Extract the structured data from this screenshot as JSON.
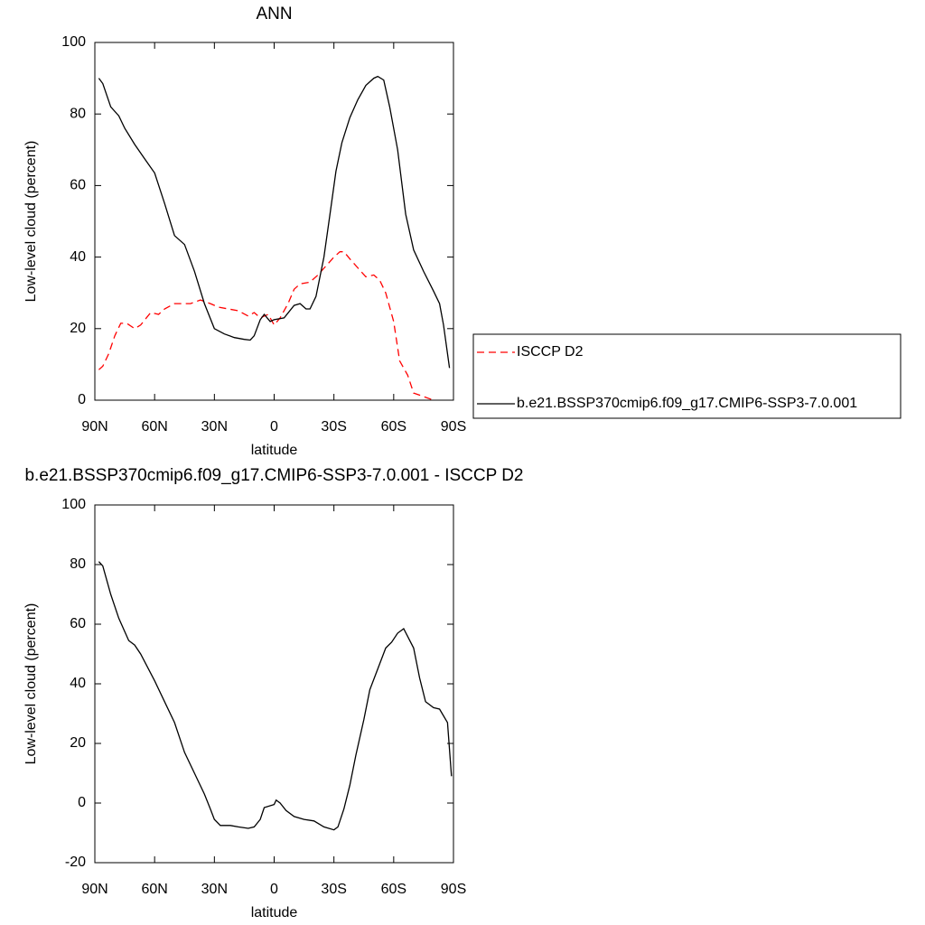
{
  "chart_data": [
    {
      "type": "line",
      "title": "ANN",
      "xlabel": "latitude",
      "ylabel": "Low-level cloud (percent)",
      "xlim": [
        90,
        -90
      ],
      "xticks": [
        {
          "value": 90,
          "label": "90N"
        },
        {
          "value": 60,
          "label": "60N"
        },
        {
          "value": 30,
          "label": "30N"
        },
        0,
        {
          "value": -30,
          "label": "30S"
        },
        {
          "value": -60,
          "label": "60S"
        },
        {
          "value": -90,
          "label": "90S"
        }
      ],
      "ylim": [
        0,
        100
      ],
      "yticks": [
        0,
        20,
        40,
        60,
        80,
        100
      ],
      "legend": "right",
      "series": [
        {
          "name": "ISCCP D2",
          "color": "#ff0000",
          "dash": true,
          "x": [
            88,
            86,
            83,
            80,
            77,
            74,
            70,
            67,
            62,
            58,
            55,
            50,
            45,
            42,
            37,
            32,
            28,
            23,
            18,
            13,
            10,
            7,
            3,
            0,
            -3,
            -7,
            -10,
            -13,
            -18,
            -22,
            -26,
            -30,
            -33,
            -35,
            -38,
            -42,
            -46,
            -50,
            -53,
            -56,
            -60,
            -63,
            -67,
            -70,
            -75,
            -80
          ],
          "values": [
            8.5,
            9.5,
            13,
            18,
            21.5,
            21.5,
            20,
            21,
            24.5,
            24,
            25.5,
            27,
            27,
            27,
            28,
            27,
            26,
            25.5,
            25,
            23.5,
            24.5,
            23,
            24,
            21,
            23,
            27,
            31,
            32.5,
            33,
            35,
            37.5,
            40,
            41.5,
            41.5,
            39.5,
            37,
            34.5,
            35,
            33.5,
            30,
            22,
            11,
            7,
            2,
            1,
            0
          ]
        },
        {
          "name": "b.e21.BSSP370cmip6.f09_g17.CMIP6-SSP3-7.0.001",
          "color": "#000000",
          "dash": false,
          "x": [
            88,
            86,
            82,
            78,
            75,
            70,
            65,
            60,
            55,
            50,
            45,
            40,
            35,
            30,
            25,
            20,
            15,
            12,
            10,
            7,
            5,
            2,
            0,
            -5,
            -10,
            -13,
            -16,
            -18,
            -21,
            -25,
            -28,
            -31,
            -34,
            -38,
            -42,
            -46,
            -50,
            -52,
            -55,
            -58,
            -62,
            -66,
            -70,
            -75,
            -80,
            -83,
            -85,
            -88
          ],
          "values": [
            90,
            88.5,
            82,
            79.5,
            76,
            71.5,
            67.5,
            63.5,
            55,
            46,
            43.5,
            36,
            27,
            20,
            18.5,
            17.5,
            17,
            16.8,
            18,
            22.5,
            24,
            22,
            22.5,
            23,
            26.5,
            27,
            25.5,
            25.5,
            29,
            40,
            52,
            64,
            72,
            79,
            84,
            88,
            90,
            90.5,
            89.5,
            82,
            70,
            52,
            42,
            36,
            30.5,
            27,
            21,
            9
          ]
        }
      ]
    },
    {
      "type": "line",
      "title": "b.e21.BSSP370cmip6.f09_g17.CMIP6-SSP3-7.0.001 - ISCCP D2",
      "xlabel": "latitude",
      "ylabel": "Low-level cloud (percent)",
      "xlim": [
        90,
        -90
      ],
      "xticks": [
        {
          "value": 90,
          "label": "90N"
        },
        {
          "value": 60,
          "label": "60N"
        },
        {
          "value": 30,
          "label": "30N"
        },
        0,
        {
          "value": -30,
          "label": "30S"
        },
        {
          "value": -60,
          "label": "60S"
        },
        {
          "value": -90,
          "label": "90S"
        }
      ],
      "ylim": [
        -20,
        100
      ],
      "yticks": [
        -20,
        0,
        20,
        40,
        60,
        80,
        100
      ],
      "series": [
        {
          "color": "#000000",
          "dash": false,
          "x": [
            88,
            86,
            82,
            78,
            73,
            70,
            67,
            60,
            55,
            50,
            45,
            40,
            35,
            32,
            30,
            27,
            22,
            18,
            13,
            10,
            7,
            5,
            0,
            -1,
            -3,
            -6,
            -10,
            -15,
            -20,
            -25,
            -30,
            -32,
            -35,
            -38,
            -41,
            -45,
            -48,
            -52,
            -56,
            -59,
            -62,
            -65,
            -70,
            -73,
            -76,
            -80,
            -83,
            -87,
            -89
          ],
          "values": [
            81,
            79.5,
            70,
            62,
            54.5,
            53,
            50,
            41,
            34,
            27,
            17,
            10,
            3,
            -2,
            -5.5,
            -7.5,
            -7.5,
            -8,
            -8.5,
            -8,
            -5.5,
            -1.5,
            -0.5,
            1,
            0,
            -2.5,
            -4.5,
            -5.5,
            -6,
            -8,
            -9,
            -8,
            -2,
            6,
            16,
            28,
            38,
            45,
            52,
            54,
            57,
            58.5,
            52,
            42,
            34,
            32,
            31.5,
            27,
            9
          ]
        }
      ]
    }
  ]
}
